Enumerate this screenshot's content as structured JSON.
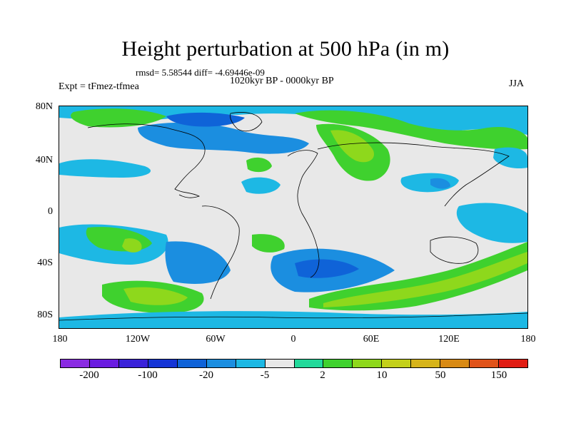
{
  "title": "Height perturbation at 500 hPa (in m)",
  "stats": "rmsd= 5.58544  diff= -4.69446e-09",
  "period": "1020kyr BP - 0000kyr BP",
  "expt": "Expt = tFmez-tfmea",
  "season": "JJA",
  "map": {
    "y_ticks": [
      "80N",
      "40N",
      "0",
      "40S",
      "80S"
    ],
    "x_ticks": [
      "180",
      "120W",
      "60W",
      "0",
      "60E",
      "120E",
      "180"
    ]
  },
  "colorbar": {
    "colors": [
      "#8a2be2",
      "#6a1ce0",
      "#3a22d9",
      "#1535d6",
      "#0f63d8",
      "#1b8ee0",
      "#1db8e4",
      "#e8e8e8",
      "#22d99a",
      "#3fd12e",
      "#8ed81c",
      "#c3d01a",
      "#d6b41a",
      "#d88a14",
      "#e0531a",
      "#e11d14"
    ],
    "labels": [
      "-200",
      "-100",
      "-20",
      "-5",
      "2",
      "10",
      "50",
      "150"
    ]
  }
}
